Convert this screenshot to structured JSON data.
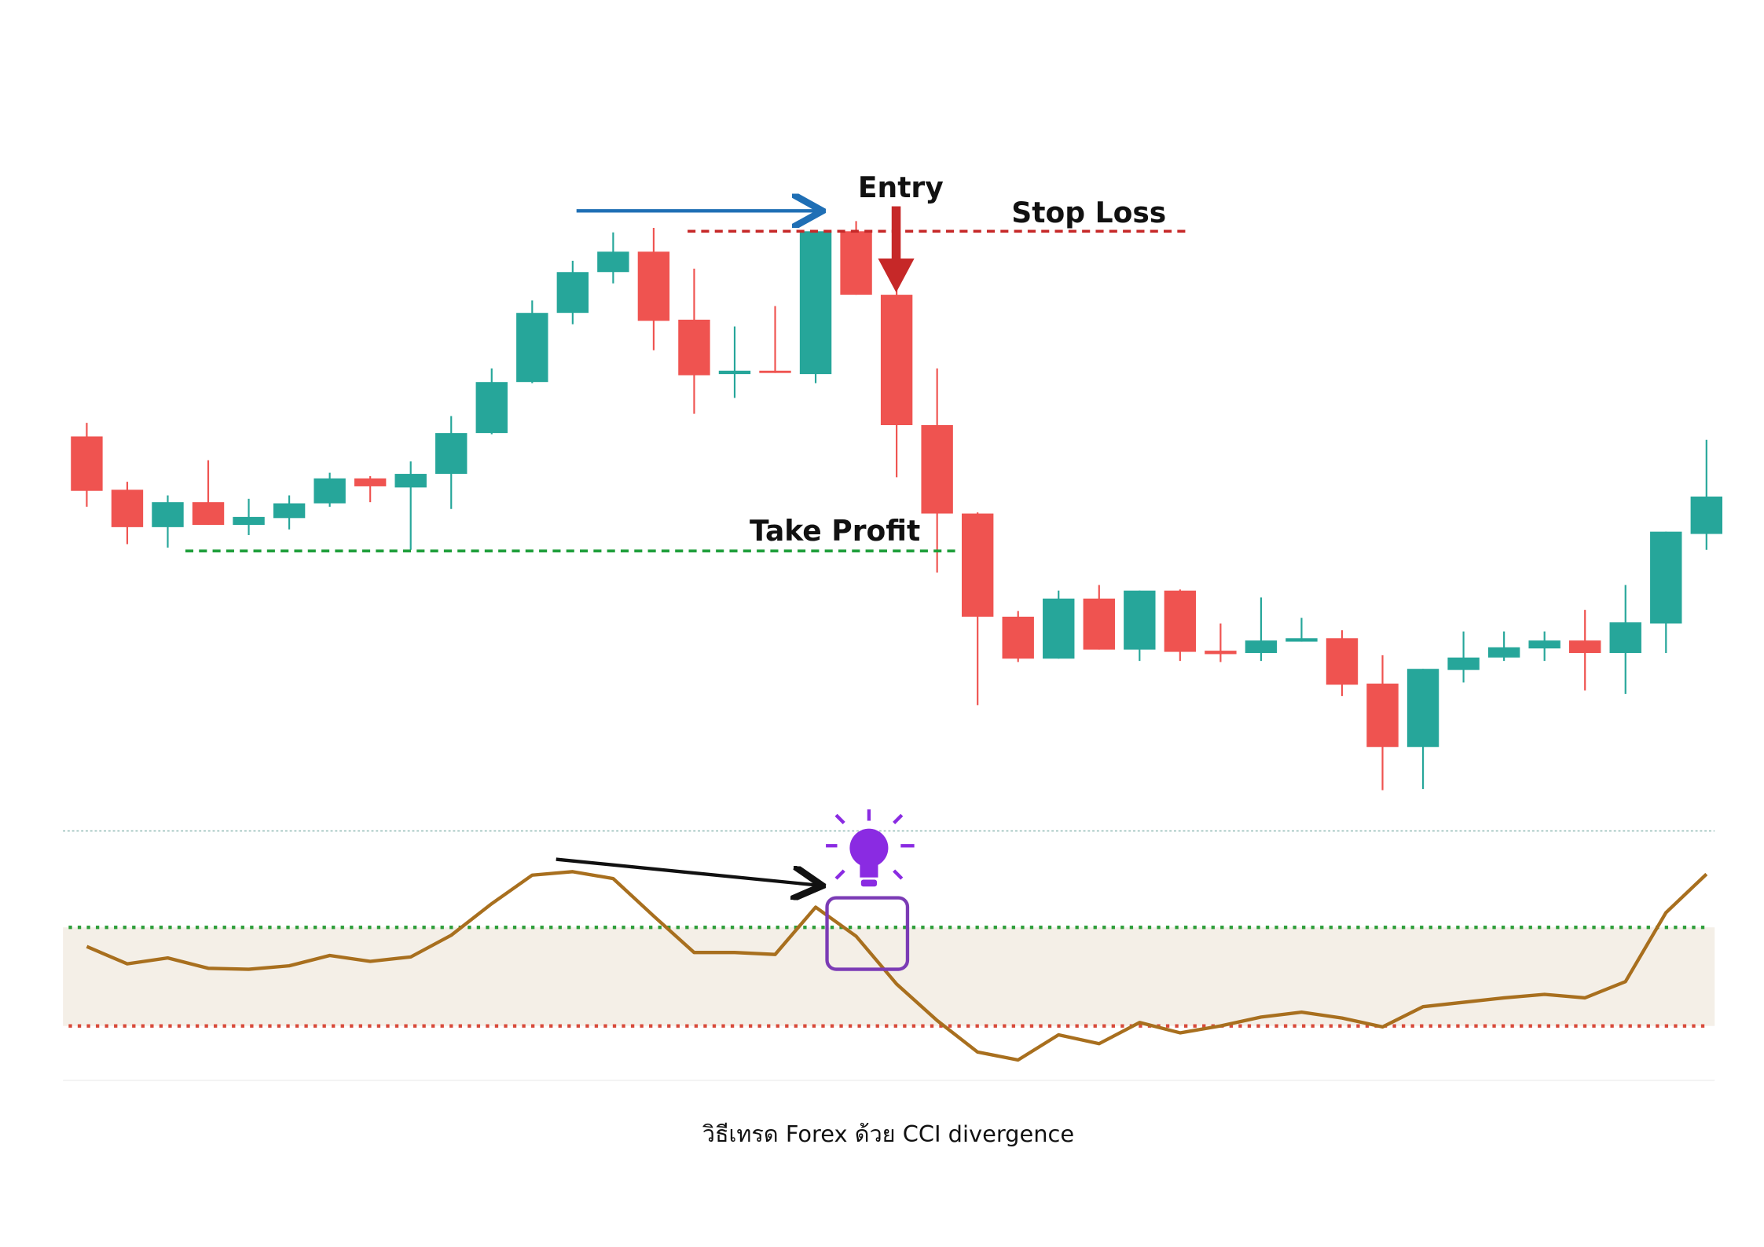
{
  "chart_data": [
    {
      "type": "candlestick",
      "up_color": "#26a69a",
      "down_color": "#ef5350",
      "ylim": [
        -20,
        550
      ],
      "open": [
        315,
        268,
        235,
        257,
        237,
        243,
        256,
        278,
        270,
        282,
        318,
        363,
        424,
        460,
        478,
        418,
        370,
        373,
        370,
        496,
        440,
        325,
        247,
        156,
        119,
        172,
        127,
        179,
        126,
        124,
        134,
        137,
        97,
        41,
        109,
        120,
        128,
        135,
        124,
        150,
        229
      ],
      "high": [
        327,
        275,
        263,
        294,
        260,
        263,
        283,
        280,
        293,
        333,
        375,
        435,
        470,
        495,
        499,
        463,
        412,
        430,
        496,
        505,
        445,
        375,
        248,
        161,
        179,
        184,
        179,
        180,
        150,
        173,
        155,
        144,
        122,
        110,
        143,
        143,
        143,
        162,
        184,
        231,
        312
      ],
      "low": [
        253,
        220,
        217,
        237,
        228,
        233,
        253,
        257,
        215,
        251,
        317,
        362,
        414,
        450,
        391,
        335,
        349,
        371,
        362,
        440,
        279,
        195,
        78,
        116,
        119,
        127,
        117,
        117,
        116,
        117,
        134,
        86,
        3,
        4,
        98,
        117,
        117,
        91,
        88,
        124,
        215
      ],
      "close": [
        267,
        235,
        257,
        237,
        244,
        256,
        278,
        271,
        282,
        318,
        363,
        424,
        460,
        478,
        417,
        369,
        373,
        371,
        496,
        440,
        325,
        247,
        156,
        119,
        172,
        127,
        179,
        125,
        123,
        135,
        137,
        96,
        41,
        110,
        120,
        129,
        135,
        124,
        151,
        231,
        262
      ],
      "annotations": {
        "entry": {
          "text": "Entry"
        },
        "stop_loss": {
          "text": "Stop Loss",
          "value": 496,
          "color": "#c62828"
        },
        "take_profit": {
          "text": "Take Profit",
          "value": 214,
          "color": "#1e9e3a"
        }
      }
    },
    {
      "type": "line",
      "color": "#a86f1e",
      "ylim": [
        -215,
        268
      ],
      "values": [
        61,
        26,
        38,
        17,
        15,
        22,
        43,
        31,
        40,
        84,
        148,
        206,
        213,
        199,
        123,
        49,
        49,
        45,
        141,
        82,
        -15,
        -89,
        -153,
        -169,
        -118,
        -136,
        -93,
        -114,
        -100,
        -82,
        -72,
        -84,
        -102,
        -61,
        -52,
        -43,
        -36,
        -43,
        -10,
        130,
        208
      ],
      "levels": [
        {
          "value": 100,
          "color": "#2e9e3a"
        },
        {
          "value": -100,
          "color": "#d84a3a"
        }
      ]
    }
  ],
  "caption": "วิธีเทรด Forex ด้วย CCI divergence"
}
